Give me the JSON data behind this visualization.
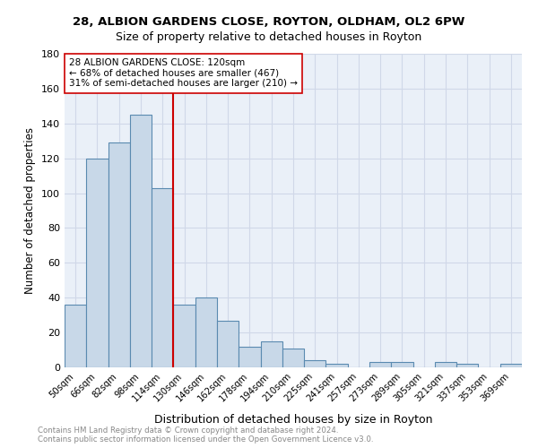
{
  "title1": "28, ALBION GARDENS CLOSE, ROYTON, OLDHAM, OL2 6PW",
  "title2": "Size of property relative to detached houses in Royton",
  "xlabel": "Distribution of detached houses by size in Royton",
  "ylabel": "Number of detached properties",
  "footnote1": "Contains HM Land Registry data © Crown copyright and database right 2024.",
  "footnote2": "Contains public sector information licensed under the Open Government Licence v3.0.",
  "bar_labels": [
    "50sqm",
    "66sqm",
    "82sqm",
    "98sqm",
    "114sqm",
    "130sqm",
    "146sqm",
    "162sqm",
    "178sqm",
    "194sqm",
    "210sqm",
    "225sqm",
    "241sqm",
    "257sqm",
    "273sqm",
    "289sqm",
    "305sqm",
    "321sqm",
    "337sqm",
    "353sqm",
    "369sqm"
  ],
  "bar_values": [
    36,
    120,
    129,
    145,
    103,
    36,
    40,
    27,
    12,
    15,
    11,
    4,
    2,
    0,
    3,
    3,
    0,
    3,
    2,
    0,
    2
  ],
  "bar_color": "#c8d8e8",
  "bar_edge_color": "#5a8ab0",
  "grid_color": "#d0d8e8",
  "bg_color": "#eaf0f8",
  "vline_x": 4.5,
  "vline_color": "#cc0000",
  "annotation_line1": "28 ALBION GARDENS CLOSE: 120sqm",
  "annotation_line2": "← 68% of detached houses are smaller (467)",
  "annotation_line3": "31% of semi-detached houses are larger (210) →",
  "ylim": [
    0,
    180
  ],
  "yticks": [
    0,
    20,
    40,
    60,
    80,
    100,
    120,
    140,
    160,
    180
  ]
}
